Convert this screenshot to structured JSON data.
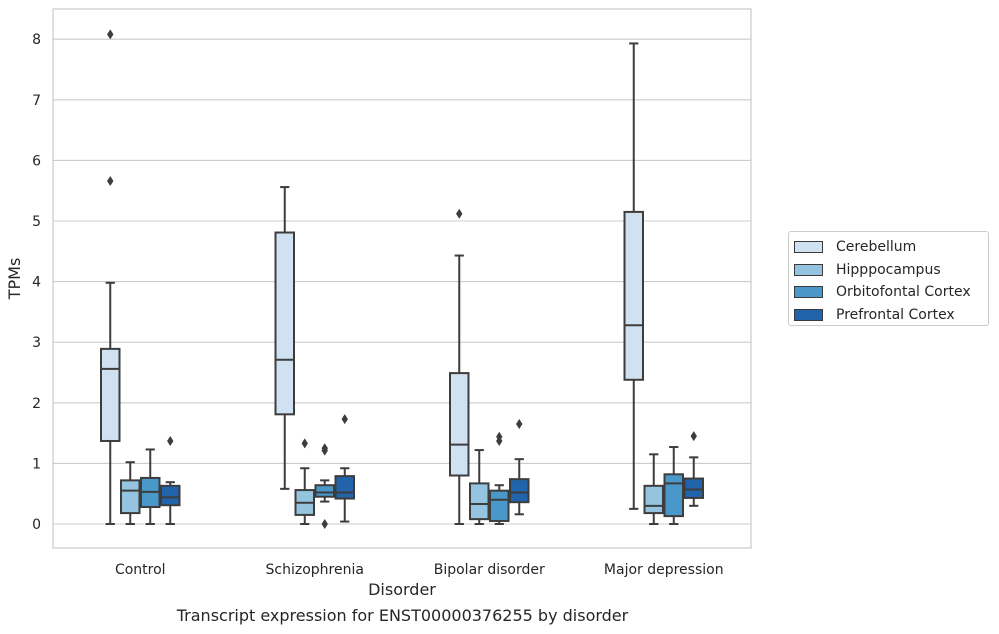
{
  "chart_data": {
    "type": "box",
    "xlabel": "Disorder",
    "ylabel": "TPMs",
    "caption": "Transcript expression for ENST00000376255 by disorder",
    "ylim": [
      -0.4,
      8.5
    ],
    "yticks": [
      0,
      1,
      2,
      3,
      4,
      5,
      6,
      7,
      8
    ],
    "ytick_labels": [
      "0",
      "1",
      "2",
      "3",
      "4",
      "5",
      "6",
      "7",
      "8"
    ],
    "grid": "horizontal",
    "legend_position": "right",
    "categories": [
      "Control",
      "Schizophrenia",
      "Bipolar disorder",
      "Major depression"
    ],
    "series": [
      {
        "name": "Cerebellum",
        "color": "#d0e1f2",
        "boxes": [
          {
            "whisker_low": 0.0,
            "q1": 1.37,
            "median": 2.56,
            "q3": 2.89,
            "whisker_high": 3.98,
            "outliers": [
              5.66,
              8.08
            ]
          },
          {
            "whisker_low": 0.58,
            "q1": 1.81,
            "median": 2.71,
            "q3": 4.81,
            "whisker_high": 5.56,
            "outliers": []
          },
          {
            "whisker_low": 0.0,
            "q1": 0.8,
            "median": 1.31,
            "q3": 2.49,
            "whisker_high": 4.43,
            "outliers": [
              5.12
            ]
          },
          {
            "whisker_low": 0.25,
            "q1": 2.38,
            "median": 3.28,
            "q3": 5.15,
            "whisker_high": 7.93,
            "outliers": []
          }
        ]
      },
      {
        "name": "Hipppocampus",
        "color": "#94c4df",
        "boxes": [
          {
            "whisker_low": 0.0,
            "q1": 0.18,
            "median": 0.55,
            "q3": 0.72,
            "whisker_high": 1.02,
            "outliers": []
          },
          {
            "whisker_low": 0.0,
            "q1": 0.15,
            "median": 0.35,
            "q3": 0.56,
            "whisker_high": 0.92,
            "outliers": [
              1.33
            ]
          },
          {
            "whisker_low": 0.0,
            "q1": 0.08,
            "median": 0.33,
            "q3": 0.67,
            "whisker_high": 1.22,
            "outliers": []
          },
          {
            "whisker_low": 0.0,
            "q1": 0.18,
            "median": 0.3,
            "q3": 0.63,
            "whisker_high": 1.15,
            "outliers": []
          }
        ]
      },
      {
        "name": "Orbitofontal Cortex",
        "color": "#4a98c9",
        "boxes": [
          {
            "whisker_low": 0.0,
            "q1": 0.28,
            "median": 0.53,
            "q3": 0.76,
            "whisker_high": 1.23,
            "outliers": []
          },
          {
            "whisker_low": 0.37,
            "q1": 0.45,
            "median": 0.52,
            "q3": 0.64,
            "whisker_high": 0.72,
            "outliers": [
              1.21,
              1.25,
              0.0
            ]
          },
          {
            "whisker_low": 0.0,
            "q1": 0.05,
            "median": 0.4,
            "q3": 0.55,
            "whisker_high": 0.64,
            "outliers": [
              1.37,
              1.44
            ]
          },
          {
            "whisker_low": 0.0,
            "q1": 0.13,
            "median": 0.67,
            "q3": 0.82,
            "whisker_high": 1.27,
            "outliers": []
          }
        ]
      },
      {
        "name": "Prefrontal Cortex",
        "color": "#2164ab",
        "boxes": [
          {
            "whisker_low": 0.0,
            "q1": 0.31,
            "median": 0.44,
            "q3": 0.63,
            "whisker_high": 0.69,
            "outliers": [
              1.37
            ]
          },
          {
            "whisker_low": 0.04,
            "q1": 0.42,
            "median": 0.52,
            "q3": 0.79,
            "whisker_high": 0.92,
            "outliers": [
              1.73
            ]
          },
          {
            "whisker_low": 0.16,
            "q1": 0.36,
            "median": 0.52,
            "q3": 0.74,
            "whisker_high": 1.07,
            "outliers": [
              1.65
            ]
          },
          {
            "whisker_low": 0.3,
            "q1": 0.43,
            "median": 0.57,
            "q3": 0.75,
            "whisker_high": 1.1,
            "outliers": [
              1.45
            ]
          }
        ]
      }
    ]
  }
}
